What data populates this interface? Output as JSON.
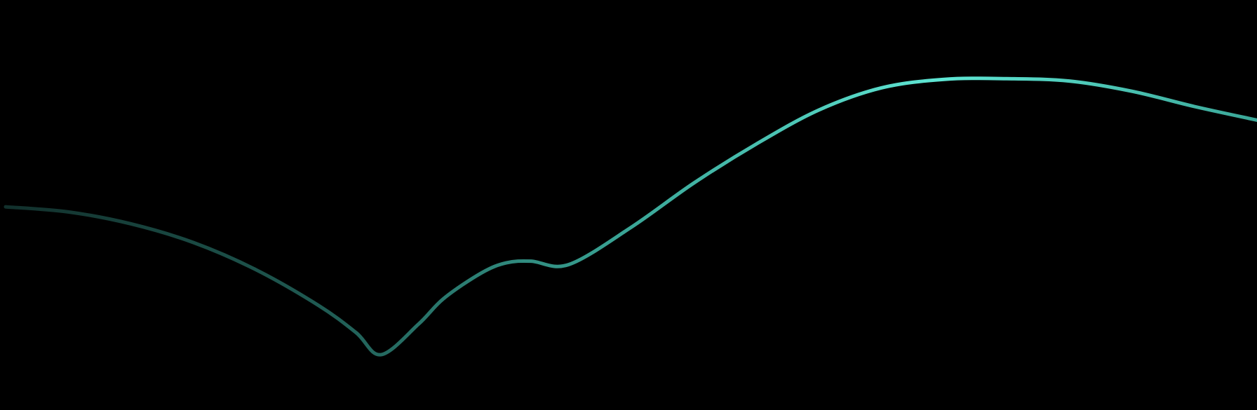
{
  "chart_data": {
    "type": "line",
    "title": "",
    "xlabel": "",
    "ylabel": "",
    "grid": false,
    "legend": "none",
    "background_color": "#000000",
    "line_gradient": [
      "#12302c",
      "#1f5a52",
      "#3aa697",
      "#5fe6d4",
      "#3aa697"
    ],
    "x": [
      0,
      0.05,
      0.1,
      0.15,
      0.2,
      0.25,
      0.28,
      0.3,
      0.33,
      0.35,
      0.38,
      0.4,
      0.42,
      0.45,
      0.5,
      0.55,
      0.6,
      0.65,
      0.7,
      0.75,
      0.8,
      0.85,
      0.9,
      0.95,
      1.0
    ],
    "series": [
      {
        "values": [
          0.505,
          0.49,
          0.455,
          0.4,
          0.32,
          0.215,
          0.135,
          0.07,
          0.16,
          0.235,
          0.31,
          0.34,
          0.345,
          0.335,
          0.445,
          0.575,
          0.69,
          0.79,
          0.855,
          0.88,
          0.882,
          0.875,
          0.845,
          0.8,
          0.76
        ]
      }
    ],
    "xlim": [
      0,
      1
    ],
    "ylim": [
      0,
      1
    ]
  }
}
